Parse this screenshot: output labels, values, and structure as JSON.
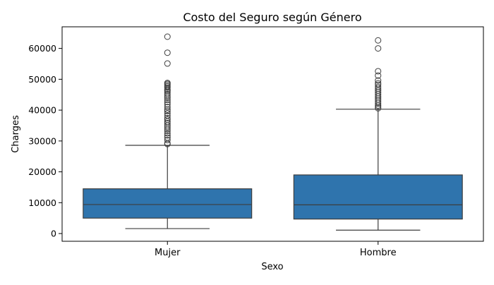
{
  "chart_data": {
    "type": "box",
    "title": "Costo del Seguro según Género",
    "xlabel": "Sexo",
    "ylabel": "Charges",
    "categories": [
      "Mujer",
      "Hombre"
    ],
    "ylim": [
      -2500,
      67000
    ],
    "yticks": [
      0,
      10000,
      20000,
      30000,
      40000,
      50000,
      60000
    ],
    "ytick_labels": [
      "0",
      "10000",
      "20000",
      "30000",
      "40000",
      "50000",
      "60000"
    ],
    "box_color": "#2f74ad",
    "edge_color": "#3d3d3d",
    "grid": false,
    "boxes": [
      {
        "category": "Mujer",
        "whisker_low": 1600,
        "q1": 5000,
        "median": 9400,
        "q3": 14500,
        "whisker_high": 28600,
        "outliers": [
          63800,
          58600,
          55100,
          48800,
          48500,
          48100,
          47700,
          47300,
          46700,
          46300,
          45800,
          45200,
          44600,
          44000,
          43300,
          42600,
          41900,
          41000,
          40200,
          39700,
          39000,
          38200,
          37400,
          36900,
          36300,
          35800,
          35100,
          34500,
          33900,
          33300,
          32500,
          31800,
          31100,
          30300,
          29300,
          29000
        ]
      },
      {
        "category": "Hombre",
        "whisker_low": 1100,
        "q1": 4700,
        "median": 9300,
        "q3": 19000,
        "whisker_high": 40300,
        "outliers": [
          62600,
          60000,
          52600,
          51200,
          49600,
          48700,
          48200,
          47500,
          46900,
          46300,
          45700,
          45100,
          44500,
          43900,
          43300,
          42700,
          42100,
          41500,
          41000,
          40600
        ]
      }
    ]
  }
}
